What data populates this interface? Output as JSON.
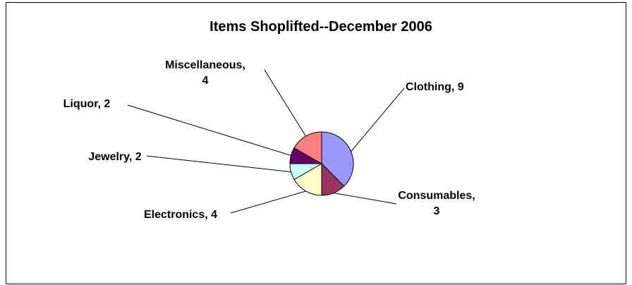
{
  "chart_data": {
    "type": "pie",
    "title": "Items Shoplifted--December 2006",
    "slices": [
      {
        "name": "Clothing",
        "value": 9,
        "color": "#9999ff",
        "label_lines": [
          "Clothing, 9"
        ]
      },
      {
        "name": "Consumables",
        "value": 3,
        "color": "#993366",
        "label_lines": [
          "Consumables,",
          "3"
        ]
      },
      {
        "name": "Electronics",
        "value": 4,
        "color": "#ffffcc",
        "label_lines": [
          "Electronics, 4"
        ]
      },
      {
        "name": "Jewelry",
        "value": 2,
        "color": "#ccffff",
        "label_lines": [
          "Jewelry, 2"
        ]
      },
      {
        "name": "Liquor",
        "value": 2,
        "color": "#660066",
        "label_lines": [
          "Liquor, 2"
        ]
      },
      {
        "name": "Miscellaneous",
        "value": 4,
        "color": "#ff8080",
        "label_lines": [
          "Miscellaneous,",
          "4"
        ]
      }
    ],
    "start_angle": "12 o'clock",
    "direction": "clockwise",
    "legend": "none",
    "data_labels": "outside with leader lines"
  }
}
